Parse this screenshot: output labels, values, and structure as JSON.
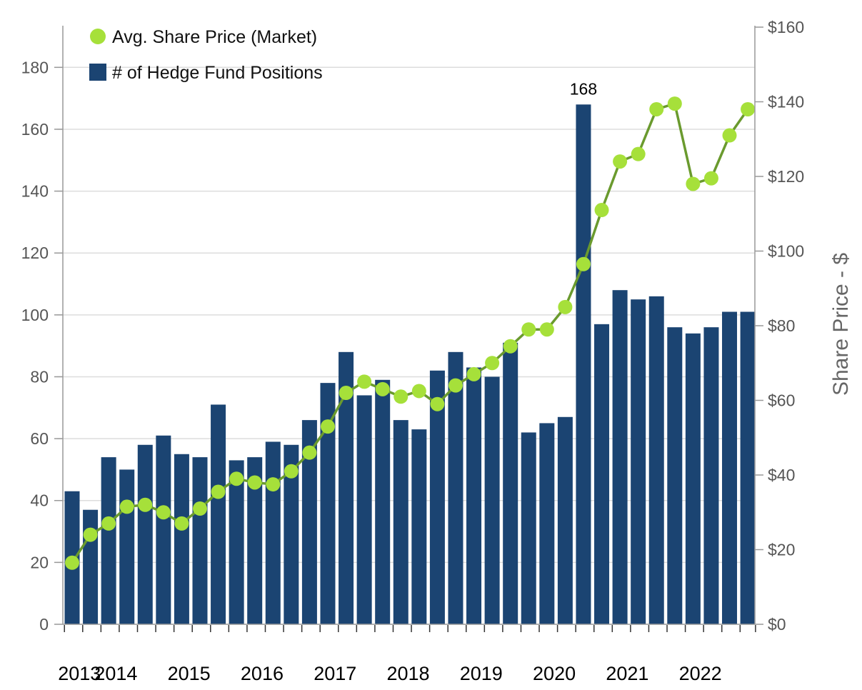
{
  "chart_data": {
    "type": "bar",
    "title": "",
    "series": [
      {
        "name": "# of Hedge Fund Positions",
        "type": "bar",
        "axis": "left",
        "color": "#1b4472",
        "values": [
          43,
          37,
          54,
          50,
          58,
          61,
          55,
          54,
          71,
          53,
          54,
          59,
          58,
          66,
          78,
          88,
          74,
          79,
          66,
          63,
          82,
          88,
          83,
          80,
          91,
          62,
          65,
          67,
          168,
          97,
          108,
          105,
          106,
          96,
          94,
          96,
          101,
          101
        ]
      },
      {
        "name": "Avg. Share Price (Market)",
        "type": "line",
        "axis": "right",
        "color": "#a6e03a",
        "line_color": "#6a9a2e",
        "values": [
          16.5,
          24,
          27,
          31.5,
          32,
          30,
          27,
          31,
          35.5,
          39,
          38,
          37.5,
          41,
          46,
          53,
          62,
          65,
          63,
          61,
          62.5,
          59,
          64,
          67,
          70,
          74.5,
          79,
          79,
          85,
          96.5,
          111,
          124,
          126,
          138,
          139.5,
          118,
          119.5,
          131,
          138
        ]
      }
    ],
    "data_labels": [
      {
        "index": 28,
        "text": "168"
      }
    ],
    "x_year_labels": [
      {
        "label": "2013",
        "start_index": 0
      },
      {
        "label": "2014",
        "start_index": 2
      },
      {
        "label": "2015",
        "start_index": 6
      },
      {
        "label": "2016",
        "start_index": 10
      },
      {
        "label": "2017",
        "start_index": 14
      },
      {
        "label": "2018",
        "start_index": 18
      },
      {
        "label": "2019",
        "start_index": 22
      },
      {
        "label": "2020",
        "start_index": 26
      },
      {
        "label": "2021",
        "start_index": 30
      },
      {
        "label": "2022",
        "start_index": 34
      }
    ],
    "y_left": {
      "min": 0,
      "max": 193,
      "ticks": [
        0,
        20,
        40,
        60,
        80,
        100,
        120,
        140,
        160,
        180
      ],
      "labels": [
        "0",
        "20",
        "40",
        "60",
        "80",
        "100",
        "120",
        "140",
        "160",
        "180"
      ]
    },
    "y_right": {
      "min": 0,
      "max": 160,
      "ticks": [
        0,
        20,
        40,
        60,
        80,
        100,
        120,
        140,
        160
      ],
      "labels": [
        "$0",
        "$20",
        "$40",
        "$60",
        "$80",
        "$100",
        "$120",
        "$140",
        "$160"
      ],
      "title": "Share Price - $"
    },
    "grid": true,
    "legend": {
      "placement": "top-left",
      "entries": [
        "Avg. Share Price (Market)",
        "# of Hedge Fund Positions"
      ]
    }
  }
}
